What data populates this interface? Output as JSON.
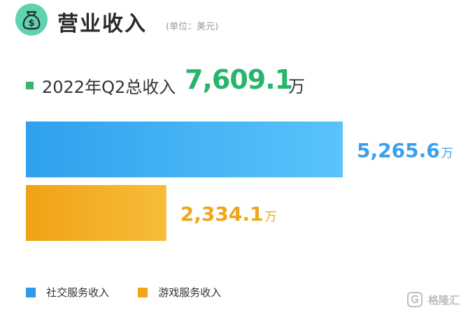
{
  "header": {
    "title": "营业收入",
    "unit": "(单位：美元)",
    "icon": "money-bag-icon",
    "icon_color": "#5fd3b0"
  },
  "total": {
    "label": "2022年Q2总收入",
    "value": "7,609.1",
    "unit": "万",
    "color": "#26b56a"
  },
  "chart_data": {
    "type": "bar",
    "orientation": "horizontal",
    "categories": [
      "社交服务收入",
      "游戏服务收入"
    ],
    "values": [
      5265.6,
      2334.1
    ],
    "value_labels": [
      "5,265.6",
      "2,334.1"
    ],
    "value_unit": "万",
    "colors": [
      "#3aa7f0",
      "#f0a51a"
    ],
    "xlim": [
      0,
      5600
    ],
    "grid": false,
    "legend_position": "bottom-left"
  },
  "legend": {
    "items": [
      {
        "label": "社交服务收入",
        "color": "#2f9ae8"
      },
      {
        "label": "游戏服务收入",
        "color": "#f2a519"
      }
    ]
  },
  "watermark": {
    "text": "格隆汇",
    "icon": "glh-logo-icon"
  }
}
